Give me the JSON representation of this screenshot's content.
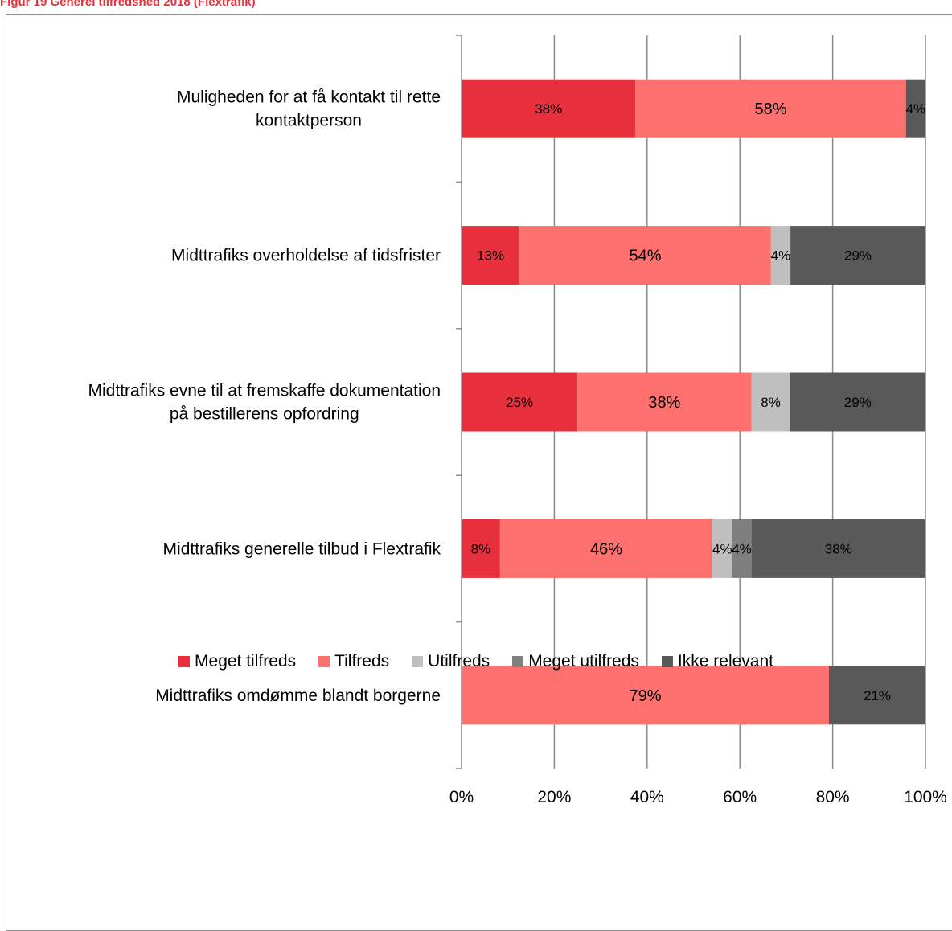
{
  "figure": {
    "title": "Figur 19 Generel tilfredshed 2018 (Flextrafik)"
  },
  "chart_data": {
    "type": "bar",
    "orientation": "horizontal",
    "stacked": "percent",
    "title": "Figur 19 Generel tilfredshed 2018 (Flextrafik)",
    "xlabel": "",
    "ylabel": "",
    "xlim": [
      0,
      100
    ],
    "x_ticks": [
      "0%",
      "20%",
      "40%",
      "60%",
      "80%",
      "100%"
    ],
    "x_tick_values": [
      0,
      20,
      40,
      60,
      80,
      100
    ],
    "grid": "vertical",
    "legend_position": "bottom",
    "categories": [
      "Muligheden for at få kontakt til rette kontaktperson",
      "Midttrafiks overholdelse af tidsfrister",
      "Midttrafiks evne til at fremskaffe dokumentation på bestillerens opfordring",
      "Midttrafiks generelle tilbud i Flextrafik",
      "Midttrafiks omdømme blandt borgerne"
    ],
    "category_lines": [
      [
        "Muligheden for at få kontakt til rette",
        "kontaktperson"
      ],
      [
        "Midttrafiks overholdelse af tidsfrister"
      ],
      [
        "Midttrafiks evne til at fremskaffe dokumentation",
        "på bestillerens opfordring"
      ],
      [
        "Midttrafiks generelle tilbud i Flextrafik"
      ],
      [
        "Midttrafiks omdømme blandt borgerne"
      ]
    ],
    "series": [
      {
        "name": "Meget tilfreds",
        "color": "#E8303C",
        "values": [
          37.5,
          12.5,
          25,
          8.3,
          0
        ]
      },
      {
        "name": "Tilfreds",
        "color": "#FF716E",
        "values": [
          58.3,
          54.2,
          37.5,
          45.8,
          79.2
        ]
      },
      {
        "name": "Utilfreds",
        "color": "#BFBFBF",
        "values": [
          0,
          4.2,
          8.3,
          4.2,
          0
        ]
      },
      {
        "name": "Meget utilfreds",
        "color": "#7F7F7F",
        "values": [
          0,
          0,
          0,
          4.2,
          0
        ]
      },
      {
        "name": "Ikke relevant",
        "color": "#595959",
        "values": [
          4.2,
          29.1,
          29.2,
          37.5,
          20.8
        ]
      }
    ],
    "data_labels": [
      [
        "38%",
        "58%",
        "",
        "",
        "4%"
      ],
      [
        "13%",
        "54%",
        "4%",
        "",
        "29%"
      ],
      [
        "25%",
        "38%",
        "8%",
        "",
        "29%"
      ],
      [
        "8%",
        "46%",
        "4%",
        "4%",
        "38%"
      ],
      [
        "",
        "79%",
        "",
        "",
        "21%"
      ]
    ]
  }
}
